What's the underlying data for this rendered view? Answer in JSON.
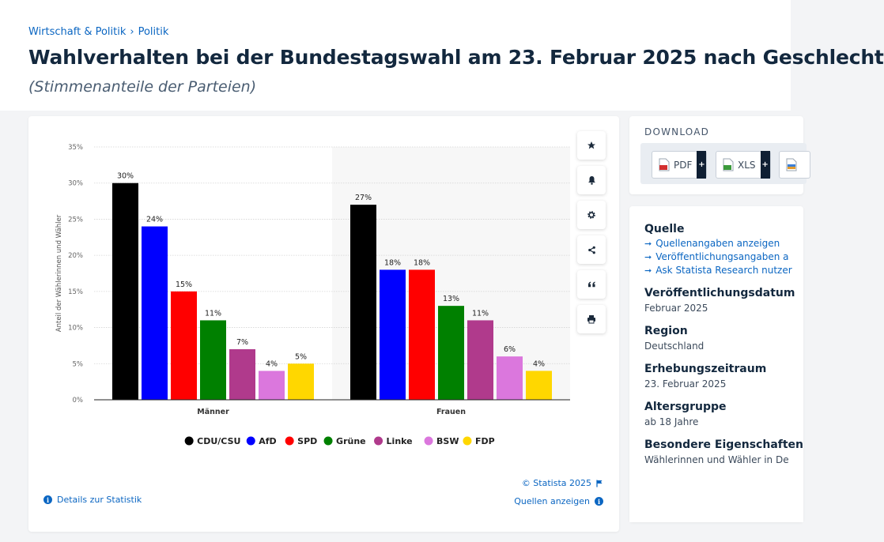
{
  "breadcrumb": {
    "item1": "Wirtschaft & Politik",
    "separator": "›",
    "item2": "Politik"
  },
  "page": {
    "title": "Wahlverhalten bei der Bundestagswahl am 23. Februar 2025 nach Geschlecht",
    "subtitle": "(Stimmenanteile der Parteien)"
  },
  "chart_data": {
    "type": "bar",
    "categories": [
      "Männer",
      "Frauen"
    ],
    "series": [
      {
        "name": "CDU/CSU",
        "color": "#000000",
        "values": [
          30,
          27
        ]
      },
      {
        "name": "AfD",
        "color": "#0000ff",
        "values": [
          24,
          18
        ]
      },
      {
        "name": "SPD",
        "color": "#ff0000",
        "values": [
          15,
          18
        ]
      },
      {
        "name": "Grüne",
        "color": "#008000",
        "values": [
          11,
          13
        ]
      },
      {
        "name": "Linke",
        "color": "#b03a8c",
        "values": [
          7,
          11
        ]
      },
      {
        "name": "BSW",
        "color": "#db77dd",
        "values": [
          4,
          6
        ]
      },
      {
        "name": "FDP",
        "color": "#ffd700",
        "values": [
          5,
          4
        ]
      }
    ],
    "data_label_suffix": "%",
    "ylabel": "Anteil der Wählerinnen und Wähler",
    "xlabel": "",
    "ylim": [
      0,
      35
    ],
    "yticks": [
      0,
      5,
      10,
      15,
      20,
      25,
      30,
      35
    ],
    "ytick_labels": [
      "0%",
      "5%",
      "10%",
      "15%",
      "20%",
      "25%",
      "30%",
      "35%"
    ],
    "grid": true,
    "legend_position": "bottom"
  },
  "tools": {
    "icons": [
      "star-icon",
      "bell-icon",
      "gear-icon",
      "share-icon",
      "quote-icon",
      "print-icon"
    ]
  },
  "footer": {
    "copyright": "© Statista 2025",
    "sources_link": "Quellen anzeigen",
    "details_link": "Details zur Statistik"
  },
  "download": {
    "title": "DOWNLOAD",
    "pdf_label": "PDF",
    "xls_label": "XLS",
    "plus": "+"
  },
  "meta": {
    "quelle_heading": "Quelle",
    "quelle_links": [
      "Quellenangaben anzeigen",
      "Veröffentlichungsangaben a",
      "Ask Statista Research nutzer"
    ],
    "veroeff_heading": "Veröffentlichungsdatum",
    "veroeff_value": "Februar 2025",
    "region_heading": "Region",
    "region_value": "Deutschland",
    "erhebung_heading": "Erhebungszeitraum",
    "erhebung_value": "23. Februar 2025",
    "alter_heading": "Altersgruppe",
    "alter_value": "ab 18 Jahre",
    "besondere_heading": "Besondere Eigenschaften",
    "besondere_value": "Wählerinnen und Wähler in De"
  },
  "colors": {
    "accent": "#0b66c2",
    "title": "#13283e"
  }
}
